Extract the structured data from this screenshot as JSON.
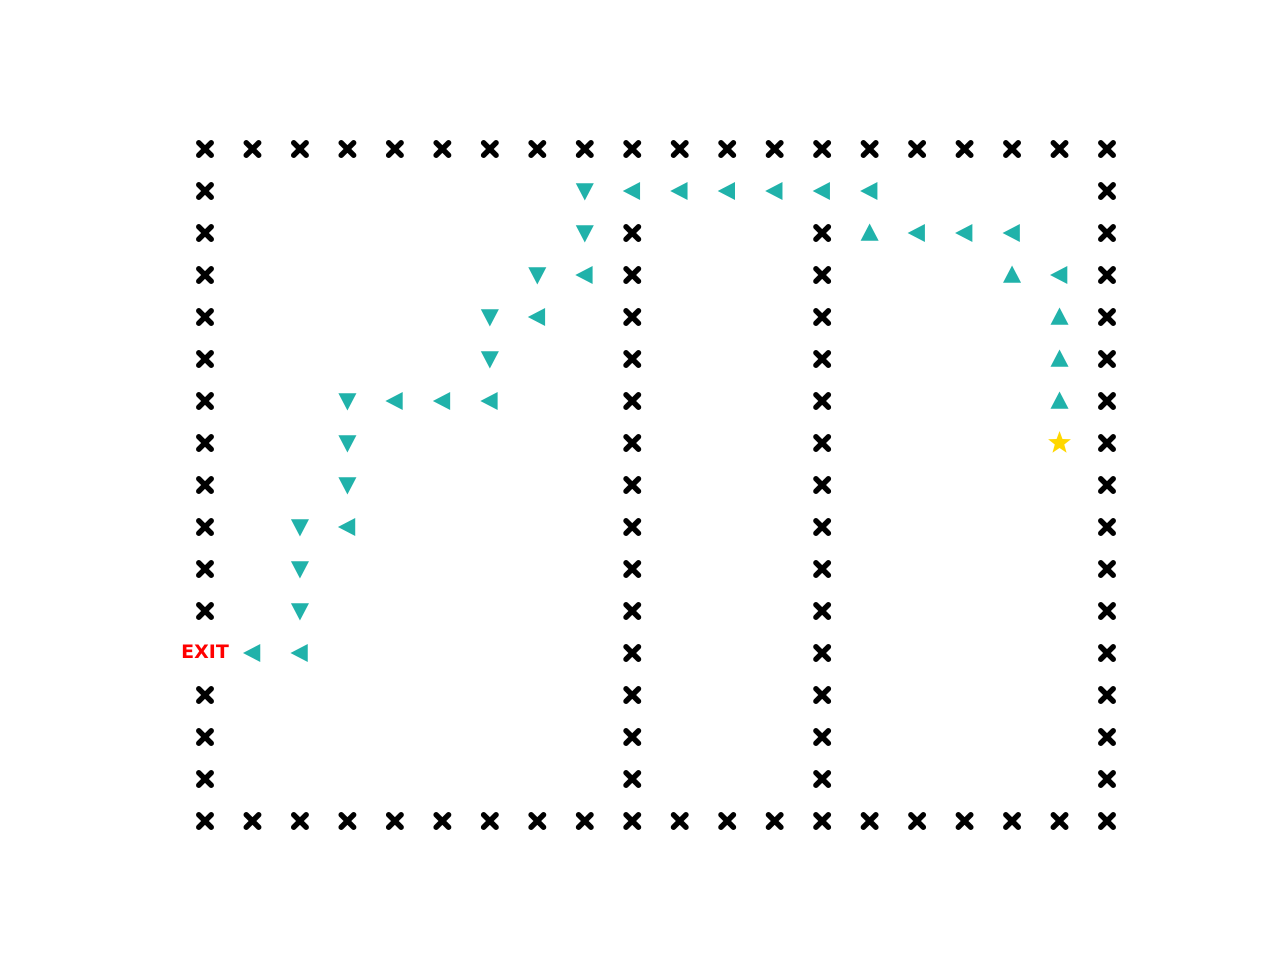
{
  "maze": {
    "columns": 20,
    "rows": 17,
    "exit_label": "EXIT",
    "colors": {
      "wall": "#000000",
      "path": "#20b2aa",
      "start": "#ffd700",
      "exit": "#ff0000",
      "background": "#ffffff"
    },
    "icons": {
      "wall": "x-mark-icon",
      "path": "triangle-arrow-icon",
      "start": "star-icon"
    },
    "start_cell": {
      "col": 18,
      "row": 7
    },
    "exit_cell": {
      "col": 0,
      "row": 12
    },
    "walls": [
      [
        0,
        0
      ],
      [
        1,
        0
      ],
      [
        2,
        0
      ],
      [
        3,
        0
      ],
      [
        4,
        0
      ],
      [
        5,
        0
      ],
      [
        6,
        0
      ],
      [
        7,
        0
      ],
      [
        8,
        0
      ],
      [
        9,
        0
      ],
      [
        10,
        0
      ],
      [
        11,
        0
      ],
      [
        12,
        0
      ],
      [
        13,
        0
      ],
      [
        14,
        0
      ],
      [
        15,
        0
      ],
      [
        16,
        0
      ],
      [
        17,
        0
      ],
      [
        18,
        0
      ],
      [
        19,
        0
      ],
      [
        0,
        16
      ],
      [
        1,
        16
      ],
      [
        2,
        16
      ],
      [
        3,
        16
      ],
      [
        4,
        16
      ],
      [
        5,
        16
      ],
      [
        6,
        16
      ],
      [
        7,
        16
      ],
      [
        8,
        16
      ],
      [
        9,
        16
      ],
      [
        10,
        16
      ],
      [
        11,
        16
      ],
      [
        12,
        16
      ],
      [
        13,
        16
      ],
      [
        14,
        16
      ],
      [
        15,
        16
      ],
      [
        16,
        16
      ],
      [
        17,
        16
      ],
      [
        18,
        16
      ],
      [
        19,
        16
      ],
      [
        0,
        1
      ],
      [
        0,
        2
      ],
      [
        0,
        3
      ],
      [
        0,
        4
      ],
      [
        0,
        5
      ],
      [
        0,
        6
      ],
      [
        0,
        7
      ],
      [
        0,
        8
      ],
      [
        0,
        9
      ],
      [
        0,
        10
      ],
      [
        0,
        11
      ],
      [
        0,
        13
      ],
      [
        0,
        14
      ],
      [
        0,
        15
      ],
      [
        19,
        1
      ],
      [
        19,
        2
      ],
      [
        19,
        3
      ],
      [
        19,
        4
      ],
      [
        19,
        5
      ],
      [
        19,
        6
      ],
      [
        19,
        7
      ],
      [
        19,
        8
      ],
      [
        19,
        9
      ],
      [
        19,
        10
      ],
      [
        19,
        11
      ],
      [
        19,
        12
      ],
      [
        19,
        13
      ],
      [
        19,
        14
      ],
      [
        19,
        15
      ],
      [
        9,
        2
      ],
      [
        9,
        3
      ],
      [
        9,
        4
      ],
      [
        9,
        5
      ],
      [
        9,
        6
      ],
      [
        9,
        7
      ],
      [
        9,
        8
      ],
      [
        9,
        9
      ],
      [
        9,
        10
      ],
      [
        9,
        11
      ],
      [
        9,
        12
      ],
      [
        9,
        13
      ],
      [
        9,
        14
      ],
      [
        9,
        15
      ],
      [
        13,
        2
      ],
      [
        13,
        3
      ],
      [
        13,
        4
      ],
      [
        13,
        5
      ],
      [
        13,
        6
      ],
      [
        13,
        7
      ],
      [
        13,
        8
      ],
      [
        13,
        9
      ],
      [
        13,
        10
      ],
      [
        13,
        11
      ],
      [
        13,
        12
      ],
      [
        13,
        13
      ],
      [
        13,
        14
      ],
      [
        13,
        15
      ]
    ],
    "path": [
      {
        "col": 18,
        "row": 6,
        "dir": "up"
      },
      {
        "col": 18,
        "row": 5,
        "dir": "up"
      },
      {
        "col": 18,
        "row": 4,
        "dir": "up"
      },
      {
        "col": 18,
        "row": 3,
        "dir": "left"
      },
      {
        "col": 17,
        "row": 3,
        "dir": "up"
      },
      {
        "col": 17,
        "row": 2,
        "dir": "left"
      },
      {
        "col": 16,
        "row": 2,
        "dir": "left"
      },
      {
        "col": 15,
        "row": 2,
        "dir": "left"
      },
      {
        "col": 14,
        "row": 2,
        "dir": "up"
      },
      {
        "col": 14,
        "row": 1,
        "dir": "left"
      },
      {
        "col": 13,
        "row": 1,
        "dir": "left"
      },
      {
        "col": 12,
        "row": 1,
        "dir": "left"
      },
      {
        "col": 11,
        "row": 1,
        "dir": "left"
      },
      {
        "col": 10,
        "row": 1,
        "dir": "left"
      },
      {
        "col": 9,
        "row": 1,
        "dir": "left"
      },
      {
        "col": 8,
        "row": 1,
        "dir": "down"
      },
      {
        "col": 8,
        "row": 2,
        "dir": "down"
      },
      {
        "col": 8,
        "row": 3,
        "dir": "left"
      },
      {
        "col": 7,
        "row": 3,
        "dir": "down"
      },
      {
        "col": 7,
        "row": 4,
        "dir": "left"
      },
      {
        "col": 6,
        "row": 4,
        "dir": "down"
      },
      {
        "col": 6,
        "row": 5,
        "dir": "down"
      },
      {
        "col": 6,
        "row": 6,
        "dir": "left"
      },
      {
        "col": 5,
        "row": 6,
        "dir": "left"
      },
      {
        "col": 4,
        "row": 6,
        "dir": "left"
      },
      {
        "col": 3,
        "row": 6,
        "dir": "down"
      },
      {
        "col": 3,
        "row": 7,
        "dir": "down"
      },
      {
        "col": 3,
        "row": 8,
        "dir": "down"
      },
      {
        "col": 3,
        "row": 9,
        "dir": "left"
      },
      {
        "col": 2,
        "row": 9,
        "dir": "down"
      },
      {
        "col": 2,
        "row": 10,
        "dir": "down"
      },
      {
        "col": 2,
        "row": 11,
        "dir": "down"
      },
      {
        "col": 2,
        "row": 12,
        "dir": "left"
      },
      {
        "col": 1,
        "row": 12,
        "dir": "left"
      }
    ]
  }
}
